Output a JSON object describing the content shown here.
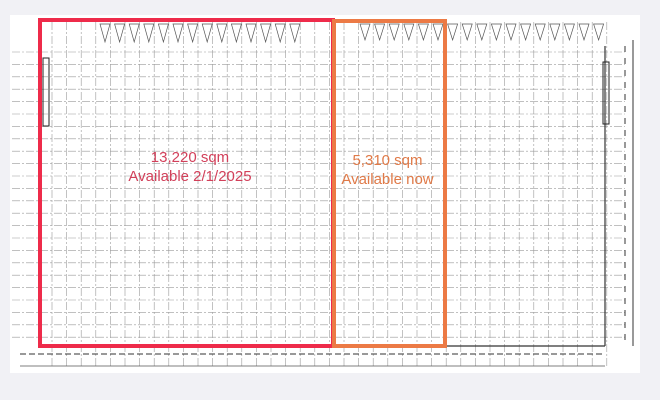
{
  "zones": [
    {
      "area": "13,220 sqm",
      "availability": "Available 2/1/2025",
      "color": "#ee2b4a"
    },
    {
      "area": "5,310 sqm",
      "availability": "Available now",
      "color": "#ec7a45"
    }
  ],
  "colors": {
    "paper": "#ffffff",
    "background": "#f1f1f5",
    "grid": "#9a9a9a"
  }
}
